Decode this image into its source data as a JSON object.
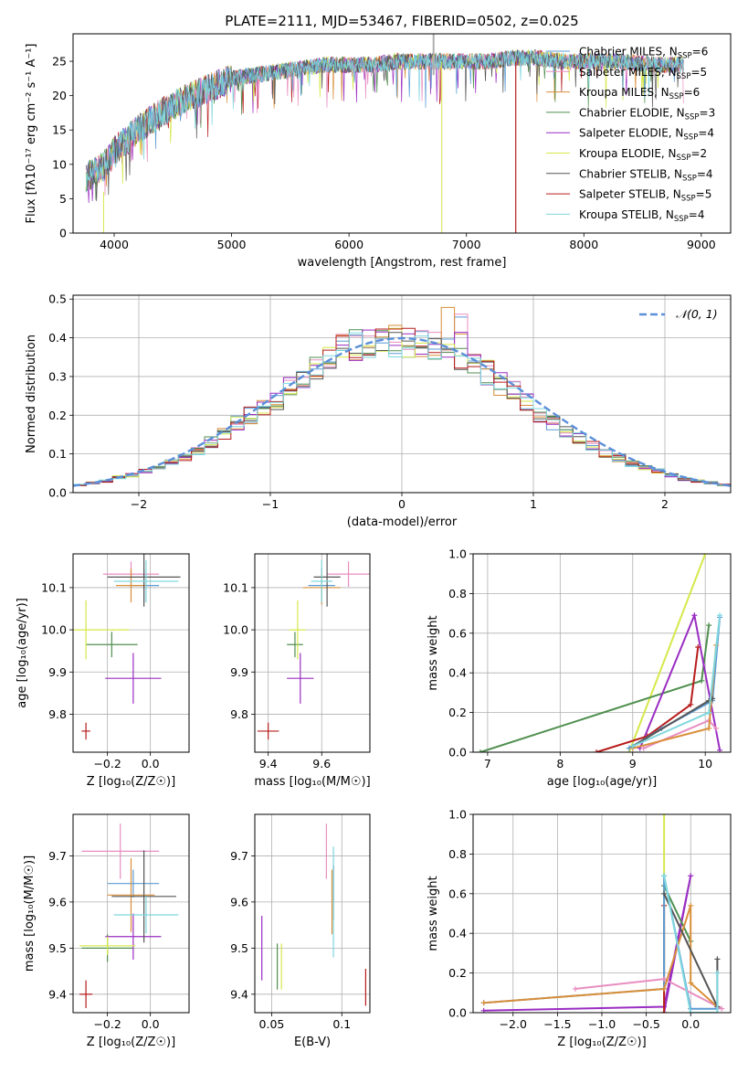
{
  "title": "PLATE=2111, MJD=53467, FIBERID=0502, z=0.025",
  "colors": {
    "chabrier_miles": "#5b9bd5",
    "salpeter_miles": "#e88dc0",
    "kroupa_miles": "#d98f3a",
    "chabrier_elodie": "#4f8f4f",
    "salpeter_elodie": "#9a2dc2",
    "kroupa_elodie": "#d6e84a",
    "chabrier_stelib": "#555555",
    "salpeter_stelib": "#b81c1c",
    "kroupa_stelib": "#7fd7de",
    "normal": "#5b8fd9"
  },
  "chart_data": [
    {
      "id": "spectrum",
      "type": "line",
      "xlabel": "wavelength [Angstrom, rest frame]",
      "ylabel": "Flux [fλ10⁻¹⁷ erg cm⁻² s⁻¹ A⁻¹]",
      "xlim": [
        3650,
        9250
      ],
      "ylim": [
        0,
        29
      ],
      "xticks": [
        4000,
        5000,
        6000,
        7000,
        8000,
        9000
      ],
      "yticks": [
        0,
        5,
        10,
        15,
        20,
        25
      ],
      "legend": [
        "Chabrier MILES, NSSP=6",
        "Salpeter MILES, NSSP=5",
        "Kroupa MILES, NSSP=6",
        "Chabrier ELODIE, NSSP=3",
        "Salpeter ELODIE, NSSP=4",
        "Kroupa ELODIE, NSSP=2",
        "Chabrier STELIB, NSSP=4",
        "Salpeter STELIB, NSSP=5",
        "Kroupa STELIB, NSSP=4"
      ],
      "legend_placement": "right",
      "approx_continuum": {
        "x": [
          3750,
          3900,
          4000,
          4200,
          4400,
          4600,
          4800,
          5000,
          5200,
          5400,
          5600,
          5800,
          6000,
          6200,
          6400,
          6600,
          6800,
          7000,
          7200,
          7400,
          7600,
          7800,
          8000,
          8300,
          8600,
          8850
        ],
        "y": [
          8,
          9.5,
          12,
          15,
          17.5,
          19.5,
          21,
          22.5,
          23,
          23.5,
          24,
          24.5,
          24.5,
          24.5,
          25,
          25,
          25,
          25,
          25,
          25.5,
          25.5,
          25,
          25,
          25,
          24.5,
          24.5
        ]
      }
    },
    {
      "id": "residuals",
      "type": "histogram",
      "xlabel": "(data-model)/error",
      "ylabel": "Normed distribution",
      "xlim": [
        -2.5,
        2.5
      ],
      "ylim": [
        0,
        0.51
      ],
      "xticks": [
        -2,
        -1,
        0,
        1,
        2
      ],
      "yticks": [
        0.0,
        0.1,
        0.2,
        0.3,
        0.4,
        0.5
      ],
      "legend": [
        "𝒩(0, 1)"
      ],
      "legend_placement": "top-right",
      "bins": [
        -2.5,
        -2.4,
        -2.3,
        -2.2,
        -2.1,
        -2.0,
        -1.9,
        -1.8,
        -1.7,
        -1.6,
        -1.5,
        -1.4,
        -1.3,
        -1.2,
        -1.1,
        -1.0,
        -0.9,
        -0.8,
        -0.7,
        -0.6,
        -0.5,
        -0.4,
        -0.3,
        -0.2,
        -0.1,
        0.0,
        0.1,
        0.2,
        0.3,
        0.4,
        0.5,
        0.6,
        0.7,
        0.8,
        0.9,
        1.0,
        1.1,
        1.2,
        1.3,
        1.4,
        1.5,
        1.6,
        1.7,
        1.8,
        1.9,
        2.0,
        2.1,
        2.2,
        2.3,
        2.4
      ],
      "center_heights": [
        0.02,
        0.025,
        0.03,
        0.04,
        0.045,
        0.055,
        0.065,
        0.08,
        0.09,
        0.11,
        0.13,
        0.15,
        0.18,
        0.2,
        0.22,
        0.24,
        0.27,
        0.3,
        0.32,
        0.35,
        0.37,
        0.38,
        0.39,
        0.39,
        0.39,
        0.39,
        0.38,
        0.38,
        0.37,
        0.35,
        0.33,
        0.31,
        0.28,
        0.26,
        0.23,
        0.2,
        0.18,
        0.16,
        0.14,
        0.12,
        0.1,
        0.09,
        0.075,
        0.065,
        0.055,
        0.045,
        0.035,
        0.03,
        0.025,
        0.02
      ]
    },
    {
      "id": "age_vs_Z",
      "type": "errorbar",
      "xlabel": "Z [log₁₀(Z/Z☉)]",
      "ylabel": "age  [log₁₀(age/yr)]",
      "xlim": [
        -0.36,
        0.18
      ],
      "ylim": [
        9.71,
        10.18
      ],
      "xticks": [
        -0.2,
        0.0
      ],
      "yticks": [
        9.8,
        9.9,
        10.0,
        10.1
      ],
      "points": [
        {
          "s": "chabrier_miles",
          "x": -0.03,
          "xe": 0.07,
          "y": 10.105,
          "ye": 0.04
        },
        {
          "s": "salpeter_miles",
          "x": -0.09,
          "xe": 0.13,
          "y": 10.132,
          "ye": 0.03
        },
        {
          "s": "kroupa_miles",
          "x": -0.09,
          "xe": 0.07,
          "y": 10.105,
          "ye": 0.04
        },
        {
          "s": "chabrier_elodie",
          "x": -0.18,
          "xe": 0.12,
          "y": 9.965,
          "ye": 0.03
        },
        {
          "s": "salpeter_elodie",
          "x": -0.08,
          "xe": 0.13,
          "y": 9.885,
          "ye": 0.06
        },
        {
          "s": "kroupa_elodie",
          "x": -0.3,
          "xe": 0.2,
          "y": 10.0,
          "ye": 0.07
        },
        {
          "s": "chabrier_stelib",
          "x": -0.03,
          "xe": 0.17,
          "y": 10.125,
          "ye": 0.07
        },
        {
          "s": "salpeter_stelib",
          "x": -0.3,
          "xe": 0.02,
          "y": 9.76,
          "ye": 0.02
        },
        {
          "s": "kroupa_stelib",
          "x": -0.02,
          "xe": 0.15,
          "y": 10.115,
          "ye": 0.05
        }
      ]
    },
    {
      "id": "age_vs_mass",
      "type": "errorbar",
      "xlabel": "mass [log₁₀(M/M☉)]",
      "ylabel": "",
      "xlim": [
        9.35,
        9.78
      ],
      "ylim": [
        9.71,
        10.18
      ],
      "xticks": [
        9.4,
        9.6
      ],
      "yticks": [
        9.8,
        9.9,
        10.0,
        10.1
      ],
      "points": [
        {
          "s": "chabrier_miles",
          "x": 9.6,
          "xe": 0.05,
          "y": 10.105,
          "ye": 0.04
        },
        {
          "s": "salpeter_miles",
          "x": 9.7,
          "xe": 0.08,
          "y": 10.132,
          "ye": 0.03
        },
        {
          "s": "kroupa_miles",
          "x": 9.6,
          "xe": 0.07,
          "y": 10.1,
          "ye": 0.04
        },
        {
          "s": "chabrier_elodie",
          "x": 9.5,
          "xe": 0.03,
          "y": 9.965,
          "ye": 0.03
        },
        {
          "s": "salpeter_elodie",
          "x": 9.52,
          "xe": 0.05,
          "y": 9.885,
          "ye": 0.06
        },
        {
          "s": "kroupa_elodie",
          "x": 9.51,
          "xe": 0.03,
          "y": 10.0,
          "ye": 0.07
        },
        {
          "s": "chabrier_stelib",
          "x": 9.62,
          "xe": 0.05,
          "y": 10.125,
          "ye": 0.07
        },
        {
          "s": "salpeter_stelib",
          "x": 9.4,
          "xe": 0.04,
          "y": 9.76,
          "ye": 0.02
        },
        {
          "s": "kroupa_stelib",
          "x": 9.6,
          "xe": 0.04,
          "y": 10.115,
          "ye": 0.05
        }
      ]
    },
    {
      "id": "mass_weight_vs_age",
      "type": "line",
      "xlabel": "age  [log₁₀(age/yr)]",
      "ylabel": "mass weight",
      "xlim": [
        6.8,
        10.35
      ],
      "ylim": [
        0,
        1.0
      ],
      "xticks": [
        7,
        8,
        9,
        10
      ],
      "yticks": [
        0.0,
        0.2,
        0.4,
        0.6,
        0.8,
        1.0
      ],
      "series": [
        {
          "s": "kroupa_elodie",
          "x": [
            8.95,
            10.0
          ],
          "y": [
            0.0,
            1.0
          ]
        },
        {
          "s": "chabrier_elodie",
          "x": [
            6.9,
            9.95,
            10.05
          ],
          "y": [
            0.0,
            0.36,
            0.64
          ]
        },
        {
          "s": "salpeter_elodie",
          "x": [
            9.1,
            9.85,
            10.2
          ],
          "y": [
            0.02,
            0.69,
            0.01
          ]
        },
        {
          "s": "salpeter_stelib",
          "x": [
            8.5,
            9.2,
            9.8,
            9.9
          ],
          "y": [
            0.0,
            0.08,
            0.24,
            0.53
          ]
        },
        {
          "s": "chabrier_miles",
          "x": [
            8.95,
            9.4,
            10.1,
            10.2
          ],
          "y": [
            0.02,
            0.12,
            0.26,
            0.68
          ]
        },
        {
          "s": "salpeter_miles",
          "x": [
            9.15,
            10.05,
            10.15
          ],
          "y": [
            0.02,
            0.16,
            0.12
          ]
        },
        {
          "s": "kroupa_miles",
          "x": [
            9.0,
            10.05,
            10.15
          ],
          "y": [
            0.02,
            0.12,
            0.54
          ]
        },
        {
          "s": "chabrier_stelib",
          "x": [
            9.0,
            10.05,
            10.1
          ],
          "y": [
            0.03,
            0.26,
            0.27
          ]
        },
        {
          "s": "kroupa_stelib",
          "x": [
            9.0,
            10.05,
            10.2
          ],
          "y": [
            0.03,
            0.2,
            0.69
          ]
        }
      ]
    },
    {
      "id": "mass_vs_Z",
      "type": "errorbar",
      "xlabel": "Z [log₁₀(Z/Z☉)]",
      "ylabel": "mass [log₁₀(M/M☉)]",
      "xlim": [
        -0.36,
        0.18
      ],
      "ylim": [
        9.36,
        9.79
      ],
      "xticks": [
        -0.2,
        0.0
      ],
      "yticks": [
        9.4,
        9.5,
        9.6,
        9.7
      ],
      "points": [
        {
          "s": "chabrier_miles",
          "x": -0.08,
          "xe": 0.12,
          "y": 9.64,
          "ye": 0.03
        },
        {
          "s": "salpeter_miles",
          "x": -0.14,
          "xe": 0.18,
          "y": 9.71,
          "ye": 0.06
        },
        {
          "s": "kroupa_miles",
          "x": -0.09,
          "xe": 0.11,
          "y": 9.615,
          "ye": 0.08
        },
        {
          "s": "chabrier_elodie",
          "x": -0.2,
          "xe": 0.12,
          "y": 9.5,
          "ye": 0.03
        },
        {
          "s": "salpeter_elodie",
          "x": -0.08,
          "xe": 0.13,
          "y": 9.525,
          "ye": 0.05
        },
        {
          "s": "kroupa_elodie",
          "x": -0.2,
          "xe": 0.13,
          "y": 9.505,
          "ye": 0.02
        },
        {
          "s": "chabrier_stelib",
          "x": -0.03,
          "xe": 0.15,
          "y": 9.612,
          "ye": 0.1
        },
        {
          "s": "salpeter_stelib",
          "x": -0.3,
          "xe": 0.03,
          "y": 9.4,
          "ye": 0.03
        },
        {
          "s": "kroupa_stelib",
          "x": -0.02,
          "xe": 0.15,
          "y": 9.572,
          "ye": 0.04
        }
      ]
    },
    {
      "id": "mass_vs_ebv",
      "type": "errorbar",
      "xlabel": "E(B-V)",
      "ylabel": "",
      "xlim": [
        0.038,
        0.12
      ],
      "ylim": [
        9.36,
        9.79
      ],
      "xticks": [
        0.05,
        0.1
      ],
      "yticks": [
        9.4,
        9.5,
        9.6,
        9.7
      ],
      "points": [
        {
          "s": "chabrier_miles",
          "x": 0.094,
          "y": 9.64,
          "ye": 0.04
        },
        {
          "s": "salpeter_miles",
          "x": 0.089,
          "y": 9.71,
          "ye": 0.06
        },
        {
          "s": "kroupa_miles",
          "x": 0.093,
          "y": 9.6,
          "ye": 0.07
        },
        {
          "s": "chabrier_elodie",
          "x": 0.054,
          "y": 9.46,
          "ye": 0.05
        },
        {
          "s": "salpeter_elodie",
          "x": 0.043,
          "y": 9.5,
          "ye": 0.07
        },
        {
          "s": "kroupa_elodie",
          "x": 0.057,
          "y": 9.46,
          "ye": 0.05
        },
        {
          "s": "chabrier_stelib",
          "x": 0.094,
          "y": 9.62,
          "ye": 0.06
        },
        {
          "s": "salpeter_stelib",
          "x": 0.117,
          "y": 9.415,
          "ye": 0.04
        },
        {
          "s": "kroupa_stelib",
          "x": 0.094,
          "y": 9.6,
          "ye": 0.12
        }
      ]
    },
    {
      "id": "mass_weight_vs_Z",
      "type": "line",
      "xlabel": "Z [log₁₀(Z/Z☉)]",
      "ylabel": "mass weight",
      "xlim": [
        -2.45,
        0.45
      ],
      "ylim": [
        0,
        1.0
      ],
      "xticks": [
        -2.0,
        -1.5,
        -1.0,
        -0.5,
        0.0
      ],
      "yticks": [
        0.0,
        0.2,
        0.4,
        0.6,
        0.8,
        1.0
      ],
      "series": [
        {
          "s": "kroupa_elodie",
          "x": [
            -0.3,
            -0.3
          ],
          "y": [
            0.0,
            1.0
          ]
        },
        {
          "s": "salpeter_elodie",
          "x": [
            -2.33,
            -0.3,
            0.0,
            -0.3
          ],
          "y": [
            0.01,
            0.03,
            0.69,
            0.0
          ]
        },
        {
          "s": "chabrier_elodie",
          "x": [
            -0.3,
            0.0
          ],
          "y": [
            0.64,
            0.36
          ]
        },
        {
          "s": "salpeter_stelib",
          "x": [
            -0.3,
            -0.3
          ],
          "y": [
            0.0,
            0.54
          ]
        },
        {
          "s": "chabrier_miles",
          "x": [
            -2.33,
            -0.3,
            -0.3,
            0.0,
            0.3
          ],
          "y": [
            0.05,
            0.12,
            0.69,
            0.02,
            0.02
          ]
        },
        {
          "s": "salpeter_miles",
          "x": [
            -1.3,
            -0.3,
            0.35
          ],
          "y": [
            0.12,
            0.17,
            0.02
          ]
        },
        {
          "s": "kroupa_miles",
          "x": [
            -2.33,
            -0.3,
            0.0,
            0.0,
            0.3
          ],
          "y": [
            0.05,
            0.12,
            0.54,
            0.15,
            0.03
          ]
        },
        {
          "s": "chabrier_stelib",
          "x": [
            -0.3,
            0.3,
            0.3
          ],
          "y": [
            0.6,
            0.03,
            0.27
          ]
        },
        {
          "s": "kroupa_stelib",
          "x": [
            -0.3,
            0.0,
            0.3,
            0.3
          ],
          "y": [
            0.69,
            0.0,
            0.0,
            0.2
          ]
        }
      ]
    }
  ]
}
